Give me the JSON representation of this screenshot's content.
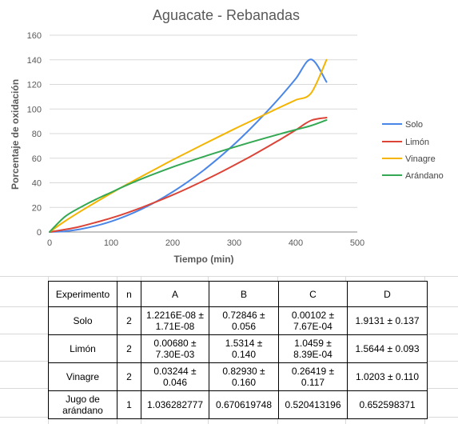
{
  "chart_data": {
    "type": "line",
    "title": "Aguacate - Rebanadas",
    "xlabel": "Tiempo (min)",
    "ylabel": "Porcentaje de oxidación",
    "xlim": [
      0,
      500
    ],
    "ylim": [
      0,
      160
    ],
    "xticks": [
      "0",
      "100",
      "200",
      "300",
      "400",
      "500"
    ],
    "yticks": [
      "0",
      "20",
      "40",
      "60",
      "80",
      "100",
      "120",
      "140",
      "160"
    ],
    "grid": "horizontal",
    "legend_position": "right",
    "x": [
      0,
      25,
      50,
      75,
      100,
      125,
      150,
      175,
      200,
      225,
      250,
      275,
      300,
      325,
      350,
      375,
      400,
      425,
      450
    ],
    "series": [
      {
        "name": "Solo",
        "color": "#4a86e8",
        "values": [
          0,
          0.6,
          2.3,
          5.0,
          8.6,
          13.2,
          18.7,
          25.2,
          32.6,
          40.9,
          50.1,
          60.3,
          71.3,
          83.3,
          96.2,
          109.9,
          124.6,
          140.3,
          122.0
        ]
      },
      {
        "name": "Limón",
        "color": "#db4437",
        "values": [
          0,
          2.0,
          4.5,
          7.8,
          11.3,
          15.4,
          20.0,
          24.9,
          30.1,
          35.7,
          41.6,
          47.8,
          54.3,
          61.0,
          68.0,
          75.3,
          82.9,
          90.7,
          93.0
        ]
      },
      {
        "name": "Vinagre",
        "color": "#f4b400",
        "values": [
          0,
          8.8,
          16.7,
          24.2,
          31.5,
          38.5,
          45.3,
          52.0,
          58.6,
          65.0,
          71.3,
          77.5,
          83.7,
          89.7,
          95.6,
          101.5,
          107.3,
          113.0,
          140.0
        ]
      },
      {
        "name": "Arándano",
        "color": "#34a853",
        "values": [
          0,
          12.5,
          20.0,
          26.5,
          32.2,
          38.0,
          43.3,
          48.2,
          52.8,
          57.1,
          61.2,
          65.2,
          69.0,
          72.7,
          76.3,
          79.8,
          83.2,
          86.5,
          91.0
        ]
      }
    ]
  },
  "table": {
    "headers": [
      "Experimento",
      "n",
      "A",
      "B",
      "C",
      "D"
    ],
    "rows": [
      {
        "exp": "Solo",
        "n": "2",
        "a1": "1.2216E-08 ±",
        "a2": "1.71E-08",
        "b1": "0.72846 ±",
        "b2": "0.056",
        "c1": "0.00102 ±",
        "c2": "7.67E-04",
        "d": "1.9131 ± 0.137"
      },
      {
        "exp": "Limón",
        "n": "2",
        "a1": "0.00680 ±",
        "a2": "7.30E-03",
        "b1": "1.5314 ±",
        "b2": "0.140",
        "c1": "1.0459 ±",
        "c2": "8.39E-04",
        "d": "1.5644 ± 0.093"
      },
      {
        "exp": "Vinagre",
        "n": "2",
        "a1": "0.03244 ±",
        "a2": "0.046",
        "b1": "0.82930 ±",
        "b2": "0.160",
        "c1": "0.26419 ±",
        "c2": "0.117",
        "d": "1.0203 ± 0.110"
      },
      {
        "exp1": "Jugo de",
        "exp2": "arándano",
        "n": "1",
        "a": "1.036282777",
        "b": "0.670619748",
        "c": "0.520413196",
        "d": "0.652598371"
      }
    ]
  }
}
